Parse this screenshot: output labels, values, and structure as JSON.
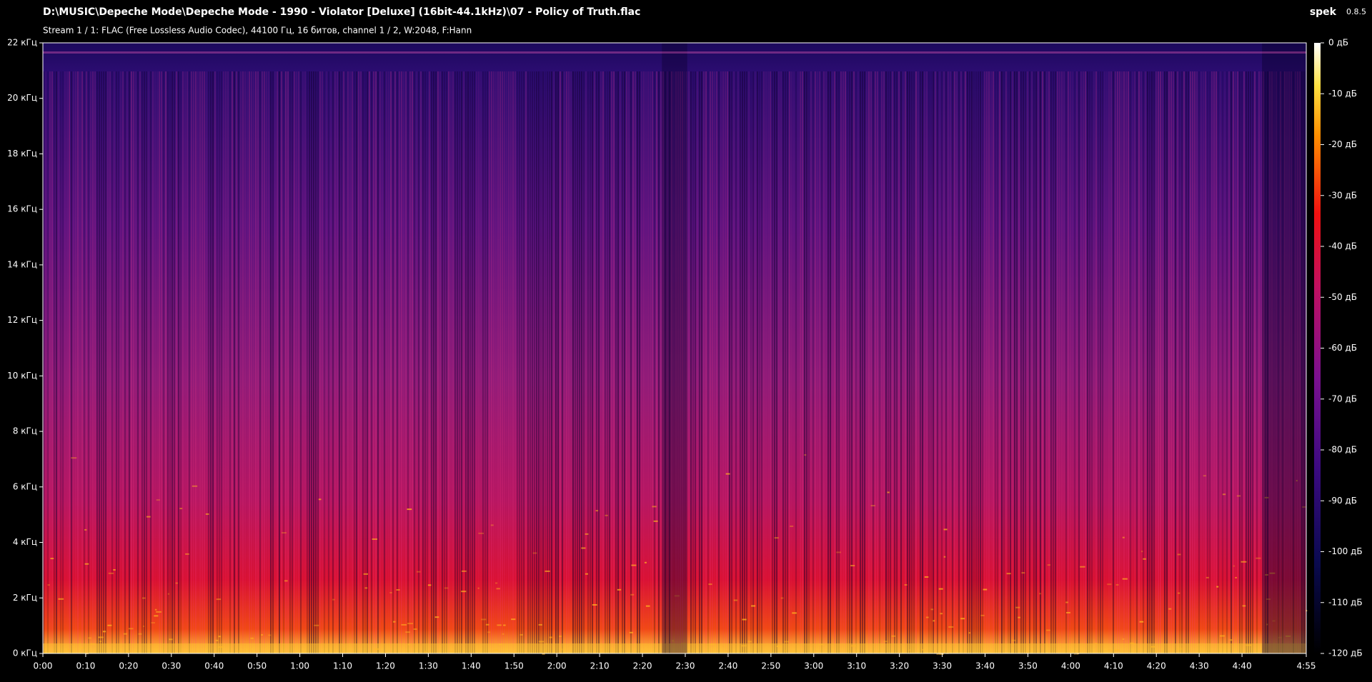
{
  "chart_data": {
    "type": "spectrogram",
    "title": "D:\\MUSIC\\Depeche Mode\\Depeche Mode - 1990 - Violator [Deluxe] (16bit-44.1kHz)\\07 - Policy of Truth.flac",
    "subtitle": "Stream 1 / 1: FLAC (Free Lossless Audio Codec), 44100 Гц, 16 битов, channel 1 / 2, W:2048, F:Hann",
    "app_name": "spek",
    "app_version": "0.8.5",
    "xlim": [
      0,
      295
    ],
    "xticks": [
      {
        "value": 0,
        "label": "0:00"
      },
      {
        "value": 10,
        "label": "0:10"
      },
      {
        "value": 20,
        "label": "0:20"
      },
      {
        "value": 30,
        "label": "0:30"
      },
      {
        "value": 40,
        "label": "0:40"
      },
      {
        "value": 50,
        "label": "0:50"
      },
      {
        "value": 60,
        "label": "1:00"
      },
      {
        "value": 70,
        "label": "1:10"
      },
      {
        "value": 80,
        "label": "1:20"
      },
      {
        "value": 90,
        "label": "1:30"
      },
      {
        "value": 100,
        "label": "1:40"
      },
      {
        "value": 110,
        "label": "1:50"
      },
      {
        "value": 120,
        "label": "2:00"
      },
      {
        "value": 130,
        "label": "2:10"
      },
      {
        "value": 140,
        "label": "2:20"
      },
      {
        "value": 150,
        "label": "2:30"
      },
      {
        "value": 160,
        "label": "2:40"
      },
      {
        "value": 170,
        "label": "2:50"
      },
      {
        "value": 180,
        "label": "3:00"
      },
      {
        "value": 190,
        "label": "3:10"
      },
      {
        "value": 200,
        "label": "3:20"
      },
      {
        "value": 210,
        "label": "3:30"
      },
      {
        "value": 220,
        "label": "3:40"
      },
      {
        "value": 230,
        "label": "3:50"
      },
      {
        "value": 240,
        "label": "4:00"
      },
      {
        "value": 250,
        "label": "4:10"
      },
      {
        "value": 260,
        "label": "4:20"
      },
      {
        "value": 270,
        "label": "4:30"
      },
      {
        "value": 280,
        "label": "4:40"
      },
      {
        "value": 295,
        "label": "4:55"
      }
    ],
    "ylim": [
      0,
      22
    ],
    "yticks": [
      {
        "value": 0,
        "label": "0 кГц"
      },
      {
        "value": 2,
        "label": "2 кГц"
      },
      {
        "value": 4,
        "label": "4 кГц"
      },
      {
        "value": 6,
        "label": "6 кГц"
      },
      {
        "value": 8,
        "label": "8 кГц"
      },
      {
        "value": 10,
        "label": "10 кГц"
      },
      {
        "value": 12,
        "label": "12 кГц"
      },
      {
        "value": 14,
        "label": "14 кГц"
      },
      {
        "value": 16,
        "label": "16 кГц"
      },
      {
        "value": 18,
        "label": "18 кГц"
      },
      {
        "value": 20,
        "label": "20 кГц"
      },
      {
        "value": 22,
        "label": "22 кГц"
      }
    ],
    "clim": [
      -120,
      0
    ],
    "cticks": [
      {
        "value": 0,
        "label": "0 дБ"
      },
      {
        "value": -10,
        "label": "-10 дБ"
      },
      {
        "value": -20,
        "label": "-20 дБ"
      },
      {
        "value": -30,
        "label": "-30 дБ"
      },
      {
        "value": -40,
        "label": "-40 дБ"
      },
      {
        "value": -50,
        "label": "-50 дБ"
      },
      {
        "value": -60,
        "label": "-60 дБ"
      },
      {
        "value": -70,
        "label": "-70 дБ"
      },
      {
        "value": -80,
        "label": "-80 дБ"
      },
      {
        "value": -90,
        "label": "-90 дБ"
      },
      {
        "value": -100,
        "label": "-100 дБ"
      },
      {
        "value": -110,
        "label": "-110 дБ"
      },
      {
        "value": -120,
        "label": "-120 дБ"
      }
    ]
  }
}
